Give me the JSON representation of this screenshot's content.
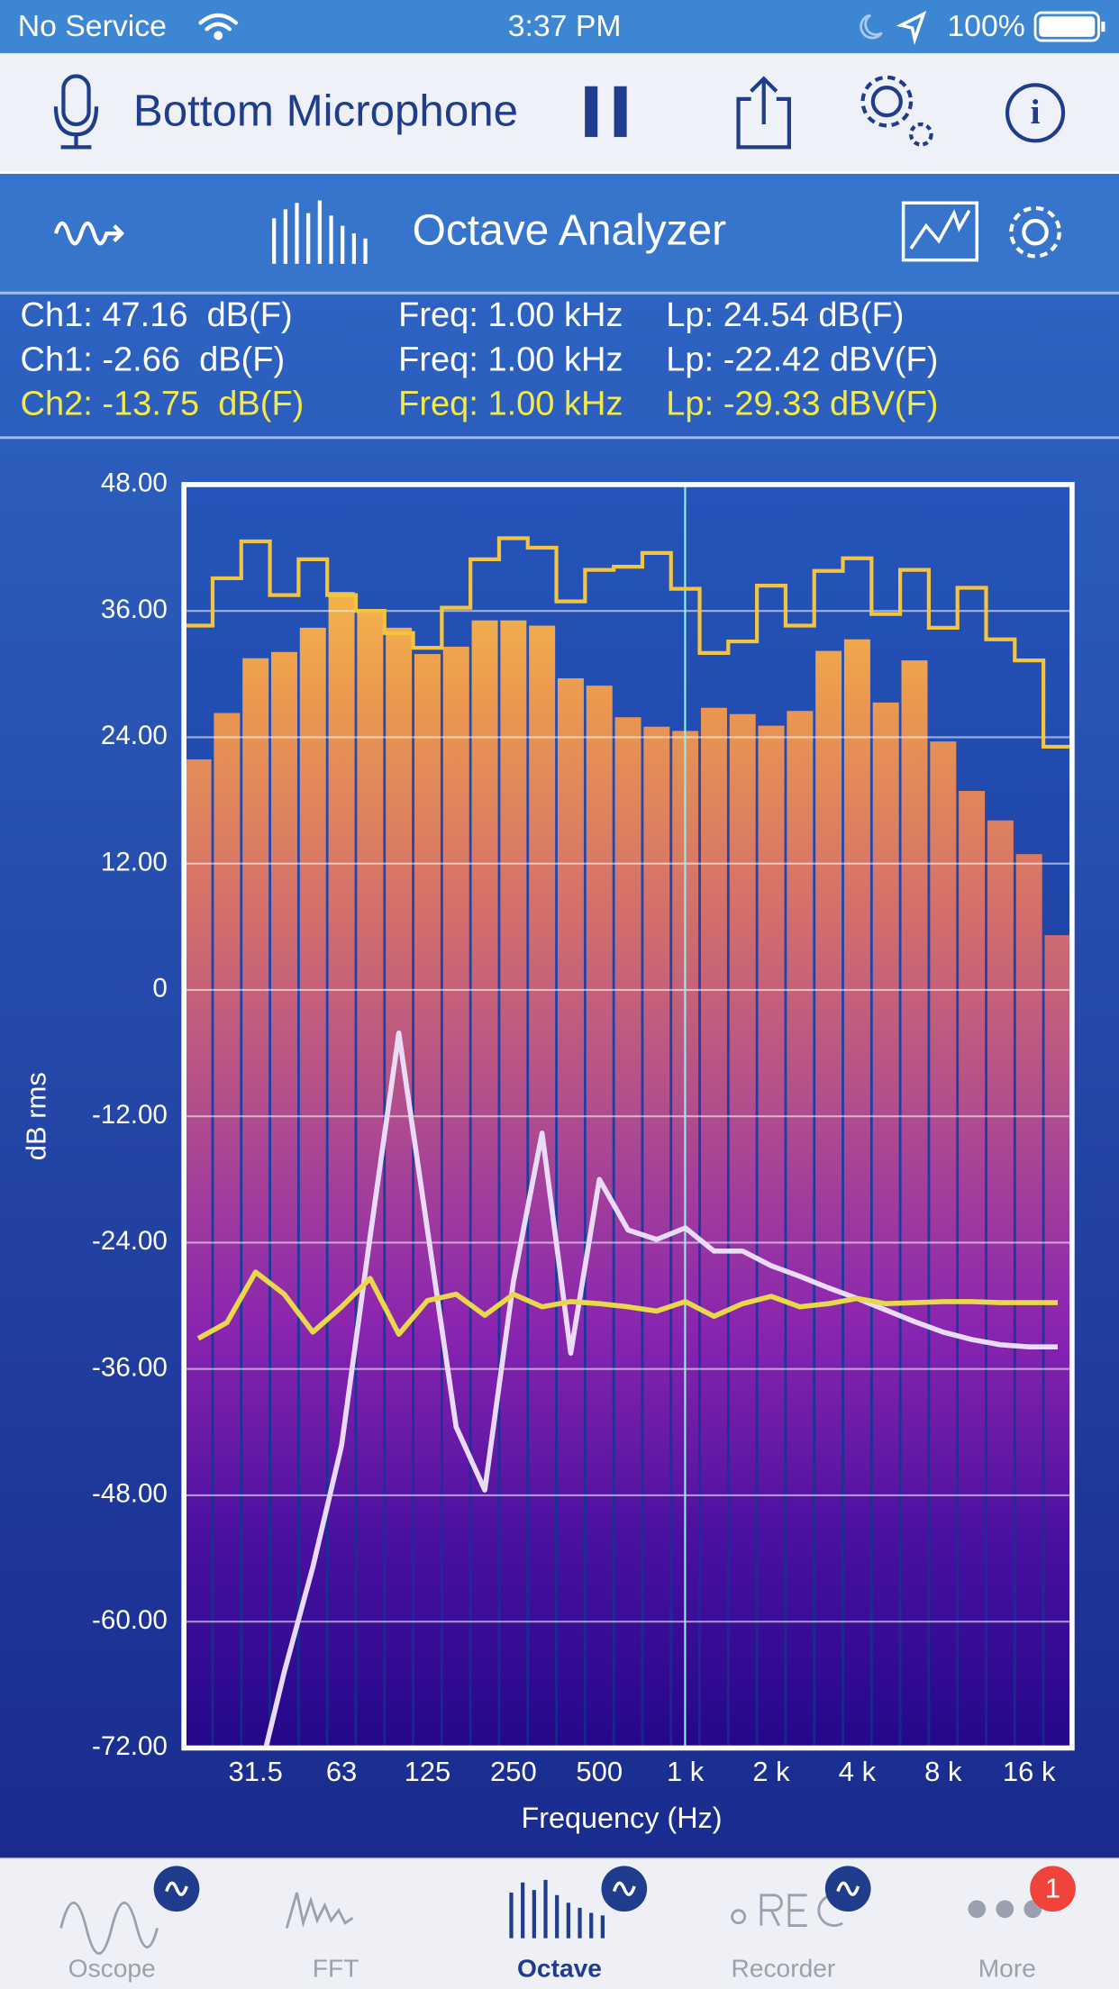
{
  "status_bar": {
    "carrier": "No Service",
    "time": "3:37 PM",
    "battery": "100%"
  },
  "toolbar": {
    "input": "Bottom Microphone"
  },
  "header": {
    "title": "Octave Analyzer"
  },
  "readouts": [
    {
      "color": "#ffffff",
      "cells": [
        "Ch1: 47.16  dB(F)",
        "Freq: 1.00 kHz",
        "Lp: 24.54 dB(F)"
      ]
    },
    {
      "color": "#ffffff",
      "cells": [
        "Ch1: -2.66  dB(F)",
        "Freq: 1.00 kHz",
        "Lp: -22.42 dBV(F)"
      ]
    },
    {
      "color": "#f3ea4a",
      "cells": [
        "Ch2: -13.75  dB(F)",
        "Freq: 1.00 kHz",
        "Lp: -29.33 dBV(F)"
      ]
    }
  ],
  "chart_data": {
    "type": "bar",
    "y_label": "dB rms",
    "x_label": "Frequency (Hz)",
    "grid": true,
    "categories": [
      null,
      null,
      "31.5",
      null,
      null,
      "63",
      null,
      null,
      "125",
      null,
      null,
      "250",
      null,
      null,
      "500",
      null,
      null,
      "1 k",
      null,
      null,
      "2 k",
      null,
      null,
      "4 k",
      null,
      null,
      "8 k",
      null,
      null,
      "16 k",
      null
    ],
    "ylim": [
      -72,
      48
    ],
    "yticks": [
      {
        "value": 48,
        "label": "48.00"
      },
      {
        "value": 36,
        "label": "36.00"
      },
      {
        "value": 24,
        "label": "24.00"
      },
      {
        "value": 12,
        "label": "12.00"
      },
      0,
      {
        "value": -12,
        "label": "-12.00"
      },
      {
        "value": -24,
        "label": "-24.00"
      },
      {
        "value": -36,
        "label": "-36.00"
      },
      {
        "value": -48,
        "label": "-48.00"
      },
      {
        "value": -60,
        "label": "-60.00"
      },
      {
        "value": -72,
        "label": "-72.00"
      }
    ],
    "series": [
      {
        "kind": "bar",
        "colors": [
          "#f9cf47",
          "#ec9a4e",
          "#d4706a",
          "#b04c8e",
          "#8a25b0",
          "#4a10a0",
          "#24088a"
        ],
        "values": [
          21.9,
          26.3,
          31.5,
          32.1,
          34.4,
          37.8,
          36.1,
          34.4,
          31.9,
          32.6,
          35.1,
          35.1,
          34.6,
          29.6,
          28.9,
          25.9,
          25.0,
          24.6,
          26.8,
          26.2,
          25.1,
          26.5,
          32.2,
          33.3,
          27.3,
          31.3,
          23.6,
          18.9,
          16.1,
          12.9,
          5.2
        ]
      },
      {
        "kind": "step",
        "color": "#f2c440",
        "values": [
          34.6,
          39.1,
          42.6,
          37.5,
          40.9,
          37.5,
          36.0,
          33.9,
          32.5,
          36.3,
          40.9,
          42.9,
          42.0,
          36.9,
          39.9,
          40.2,
          41.5,
          38.1,
          32.0,
          33.1,
          38.4,
          34.6,
          39.8,
          41.0,
          35.7,
          39.9,
          34.4,
          38.2,
          33.3,
          31.3,
          23.1
        ]
      },
      {
        "kind": "line",
        "color": "#eadcf8",
        "values": [
          null,
          null,
          -76,
          -64.8,
          -54.8,
          -43.3,
          -23.4,
          -4.1,
          -22.8,
          -41.5,
          -47.5,
          -27.7,
          -13.6,
          -34.5,
          -18.0,
          -22.8,
          -23.7,
          -22.6,
          -24.8,
          -24.8,
          -26.2,
          -27.2,
          -28.3,
          -29.3,
          -30.4,
          -31.5,
          -32.5,
          -33.2,
          -33.7,
          -33.9,
          -33.9
        ]
      },
      {
        "kind": "line",
        "color": "#e8d84a",
        "values": [
          -33.1,
          -31.6,
          -26.8,
          -28.9,
          -32.5,
          -30.1,
          -27.4,
          -32.7,
          -29.5,
          -28.9,
          -30.9,
          -28.9,
          -30.1,
          -29.6,
          -29.8,
          -30.1,
          -30.5,
          -29.6,
          -31.0,
          -29.8,
          -29.1,
          -30.1,
          -29.8,
          -29.3,
          -29.8,
          -29.7,
          -29.6,
          -29.6,
          -29.7,
          -29.7,
          -29.7
        ]
      }
    ]
  },
  "tabs": [
    {
      "label": "Oscope"
    },
    {
      "label": "FFT"
    },
    {
      "label": "Octave",
      "active": true
    },
    {
      "label": "Recorder"
    },
    {
      "label": "More",
      "badge": "1"
    }
  ]
}
